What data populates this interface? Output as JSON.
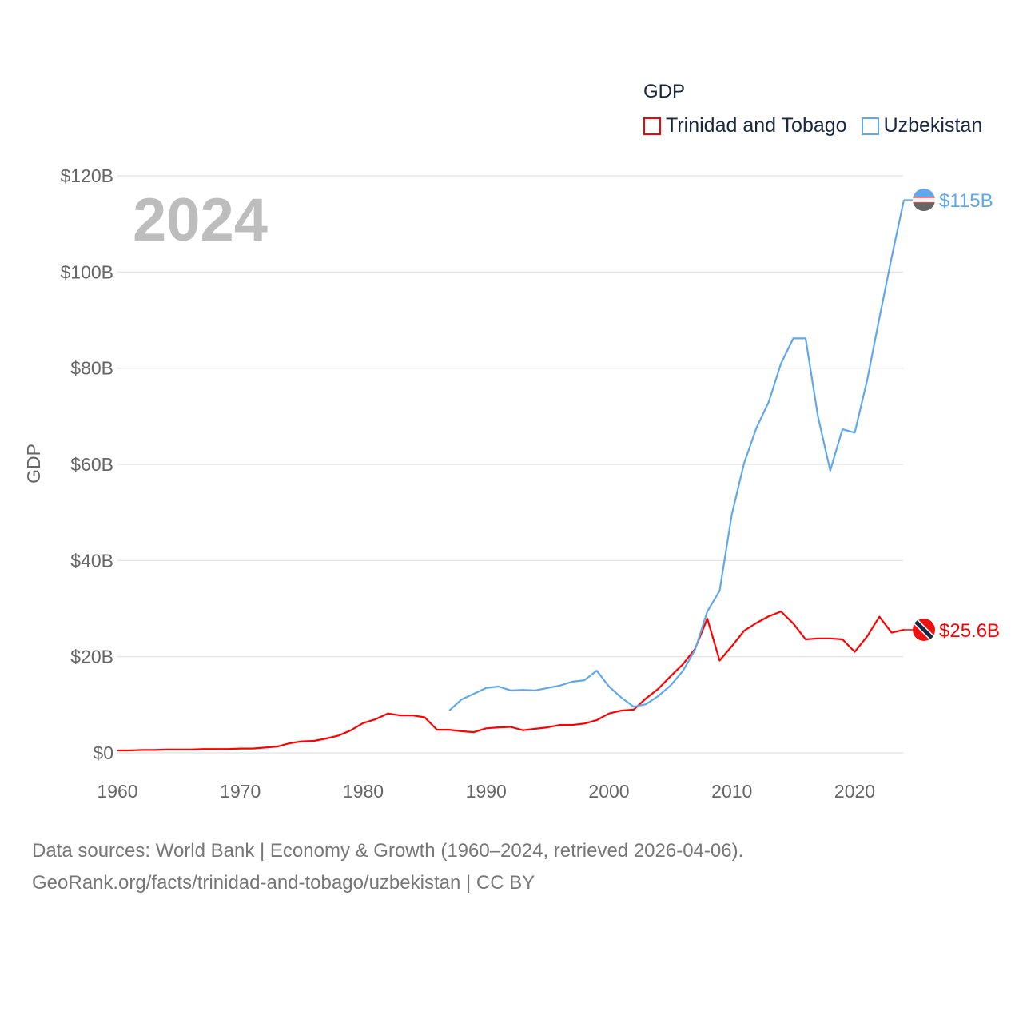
{
  "chart_data": {
    "type": "line",
    "title": "GDP",
    "ylabel": "GDP",
    "xlabel": "",
    "year_label": "2024",
    "xlim": [
      1960,
      2024
    ],
    "ylim": [
      0,
      120
    ],
    "x_ticks": [
      "1960",
      "1970",
      "1980",
      "1990",
      "2000",
      "2010",
      "2020"
    ],
    "y_ticks": [
      "$0",
      "$20B",
      "$40B",
      "$60B",
      "$80B",
      "$100B",
      "$120B"
    ],
    "grid": true,
    "legend_placement": "top-right",
    "series": [
      {
        "name": "Trinidad and Tobago",
        "color": "#ff0000",
        "start_year": 1960,
        "end_label": "$25.6B",
        "values": [
          0.5,
          0.5,
          0.6,
          0.6,
          0.7,
          0.7,
          0.7,
          0.8,
          0.8,
          0.8,
          0.9,
          0.9,
          1.1,
          1.3,
          2.0,
          2.4,
          2.5,
          3.0,
          3.6,
          4.7,
          6.2,
          7.0,
          8.2,
          7.8,
          7.8,
          7.4,
          4.8,
          4.8,
          4.5,
          4.3,
          5.1,
          5.3,
          5.4,
          4.7,
          5.0,
          5.3,
          5.8,
          5.8,
          6.1,
          6.8,
          8.2,
          8.8,
          9.0,
          11.3,
          13.3,
          15.9,
          18.4,
          21.6,
          27.9,
          19.2,
          22.2,
          25.4,
          27.0,
          28.4,
          29.4,
          26.9,
          23.6,
          23.8,
          23.8,
          23.6,
          21.0,
          24.2,
          28.3,
          25.0,
          25.6
        ]
      },
      {
        "name": "Uzbekistan",
        "color": "#5fa8ee",
        "start_year": 1987,
        "end_label": "$115B",
        "values": [
          8.8,
          11.1,
          12.3,
          13.5,
          13.8,
          13.0,
          13.1,
          13.0,
          13.5,
          14.0,
          14.8,
          15.1,
          17.1,
          13.8,
          11.5,
          9.6,
          10.1,
          11.8,
          14.0,
          17.0,
          21.4,
          29.4,
          33.7,
          49.7,
          60.3,
          67.6,
          73.0,
          81.0,
          86.2,
          86.2,
          70.0,
          58.7,
          67.3,
          66.6,
          77.4,
          90.4,
          103.0,
          115.0
        ]
      }
    ]
  },
  "footer": {
    "line1": "Data sources: World Bank | Economy & Growth (1960–2024, retrieved 2026-04-06).",
    "line2": "GeoRank.org/facts/trinidad-and-tobago/uzbekistan | CC BY"
  }
}
